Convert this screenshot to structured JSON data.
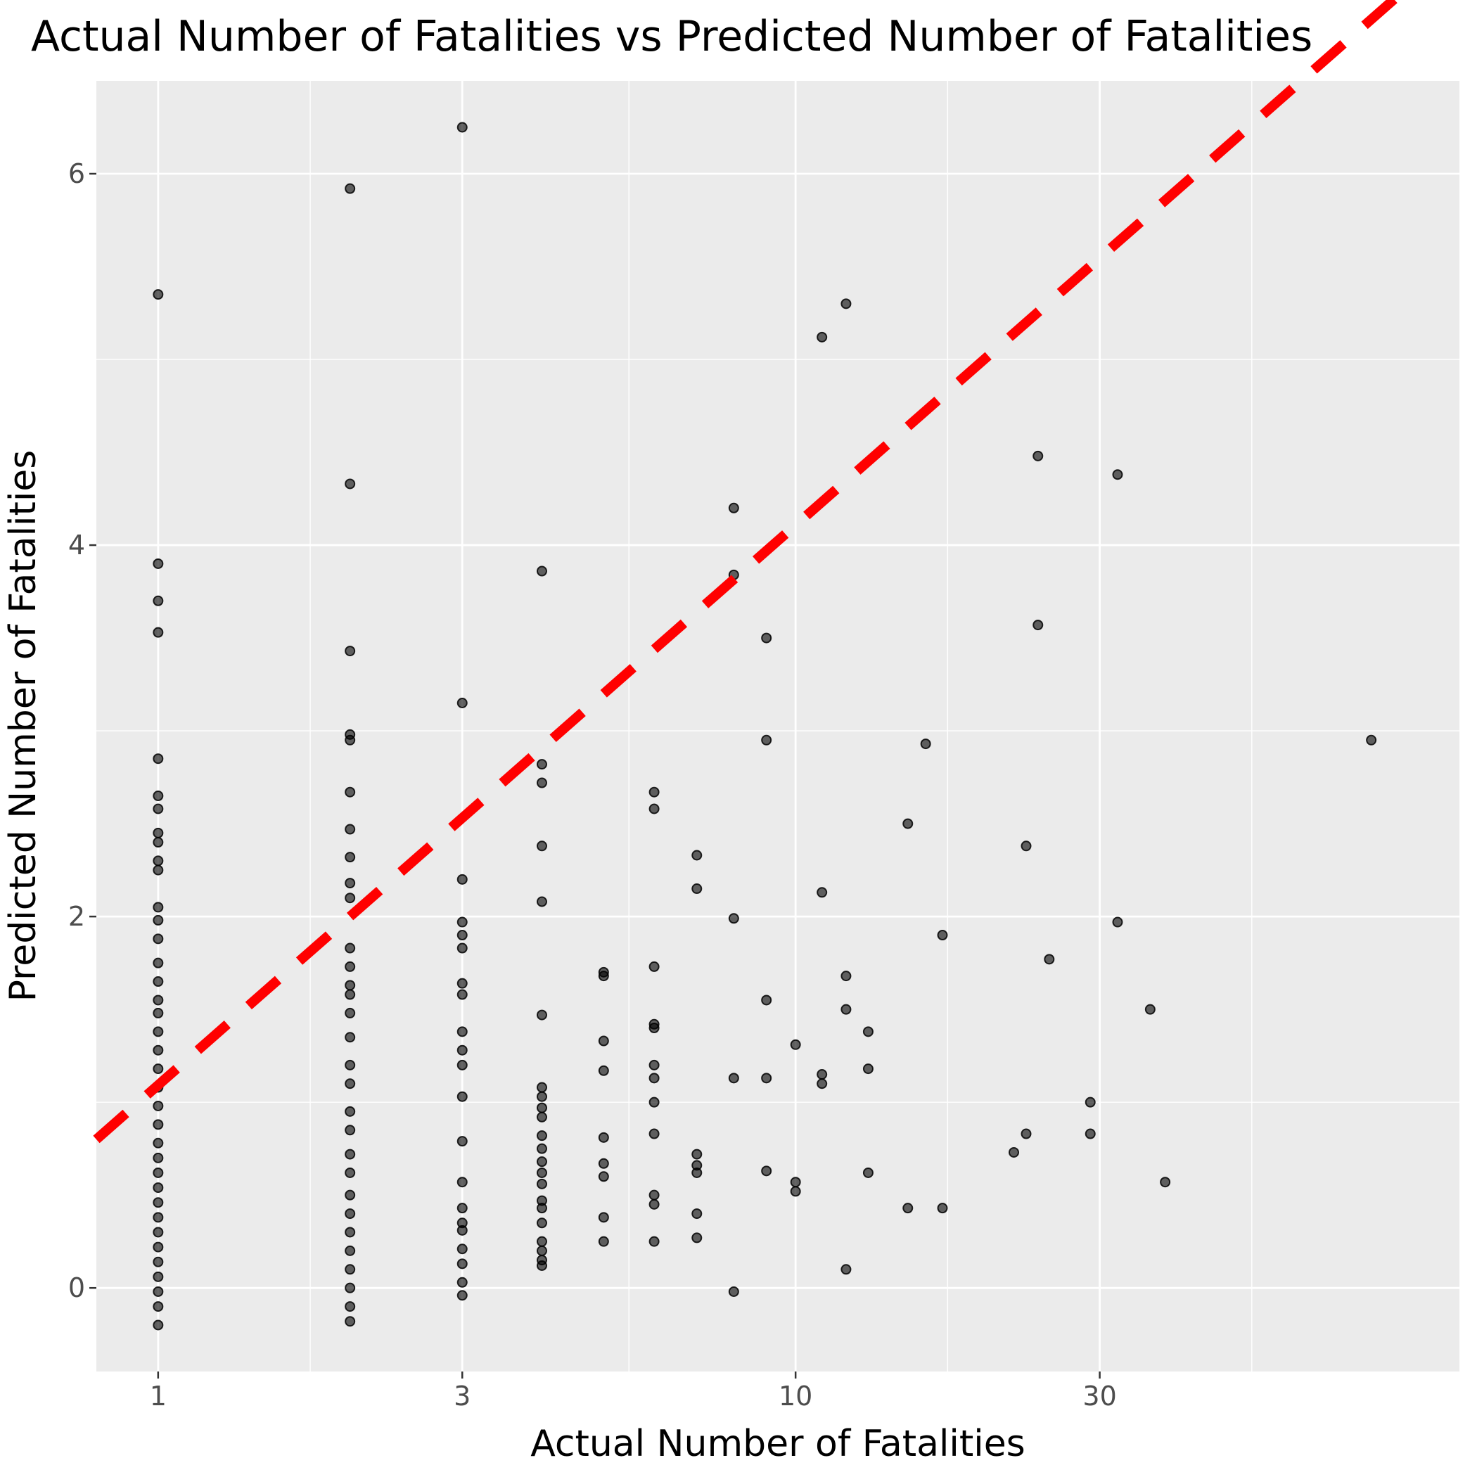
{
  "chart_data": {
    "type": "scatter",
    "title": "Actual Number of Fatalities vs Predicted Number of Fatalities",
    "xlabel": "Actual Number of Fatalities",
    "ylabel": "Predicted Number of Fatalities",
    "x_scale": "log10",
    "xlim": [
      0.8,
      110
    ],
    "ylim": [
      -0.45,
      6.5
    ],
    "x_ticks": [
      1,
      3,
      10,
      30
    ],
    "x_tick_labels": [
      "1",
      "3",
      "10",
      "30"
    ],
    "y_ticks": [
      0,
      2,
      4,
      6
    ],
    "y_tick_labels": [
      "0",
      "2",
      "4",
      "6"
    ],
    "grid": true,
    "background": "#ebebeb",
    "grid_color": "#ffffff",
    "point_color": "#000000",
    "point_alpha": 0.6,
    "reference_line": {
      "slope": 1,
      "intercept": 0,
      "color": "#ff0000",
      "style": "dashed"
    },
    "points": [
      [
        1,
        5.35
      ],
      [
        1,
        3.9
      ],
      [
        1,
        3.7
      ],
      [
        1,
        3.53
      ],
      [
        1,
        2.85
      ],
      [
        1,
        2.65
      ],
      [
        1,
        2.58
      ],
      [
        1,
        2.45
      ],
      [
        1,
        2.4
      ],
      [
        1,
        2.3
      ],
      [
        1,
        2.25
      ],
      [
        1,
        2.05
      ],
      [
        1,
        1.98
      ],
      [
        1,
        1.88
      ],
      [
        1,
        1.75
      ],
      [
        1,
        1.65
      ],
      [
        1,
        1.55
      ],
      [
        1,
        1.48
      ],
      [
        1,
        1.38
      ],
      [
        1,
        1.28
      ],
      [
        1,
        1.18
      ],
      [
        1,
        1.08
      ],
      [
        1,
        0.98
      ],
      [
        1,
        0.88
      ],
      [
        1,
        0.78
      ],
      [
        1,
        0.7
      ],
      [
        1,
        0.62
      ],
      [
        1,
        0.54
      ],
      [
        1,
        0.46
      ],
      [
        1,
        0.38
      ],
      [
        1,
        0.3
      ],
      [
        1,
        0.22
      ],
      [
        1,
        0.14
      ],
      [
        1,
        0.06
      ],
      [
        1,
        -0.02
      ],
      [
        1,
        -0.1
      ],
      [
        1,
        -0.2
      ],
      [
        2,
        5.92
      ],
      [
        2,
        4.33
      ],
      [
        2,
        3.43
      ],
      [
        2,
        2.98
      ],
      [
        2,
        2.95
      ],
      [
        2,
        2.67
      ],
      [
        2,
        2.47
      ],
      [
        2,
        2.32
      ],
      [
        2,
        2.18
      ],
      [
        2,
        2.1
      ],
      [
        2,
        1.83
      ],
      [
        2,
        1.73
      ],
      [
        2,
        1.63
      ],
      [
        2,
        1.58
      ],
      [
        2,
        1.48
      ],
      [
        2,
        1.35
      ],
      [
        2,
        1.2
      ],
      [
        2,
        1.1
      ],
      [
        2,
        0.95
      ],
      [
        2,
        0.85
      ],
      [
        2,
        0.72
      ],
      [
        2,
        0.62
      ],
      [
        2,
        0.5
      ],
      [
        2,
        0.4
      ],
      [
        2,
        0.3
      ],
      [
        2,
        0.2
      ],
      [
        2,
        0.1
      ],
      [
        2,
        0
      ],
      [
        2,
        -0.1
      ],
      [
        2,
        -0.18
      ],
      [
        3,
        6.25
      ],
      [
        3,
        3.15
      ],
      [
        3,
        2.2
      ],
      [
        3,
        1.97
      ],
      [
        3,
        1.9
      ],
      [
        3,
        1.83
      ],
      [
        3,
        1.64
      ],
      [
        3,
        1.58
      ],
      [
        3,
        1.38
      ],
      [
        3,
        1.28
      ],
      [
        3,
        1.2
      ],
      [
        3,
        1.03
      ],
      [
        3,
        0.79
      ],
      [
        3,
        0.57
      ],
      [
        3,
        0.43
      ],
      [
        3,
        0.35
      ],
      [
        3,
        0.31
      ],
      [
        3,
        0.21
      ],
      [
        3,
        0.13
      ],
      [
        3,
        0.03
      ],
      [
        3,
        -0.04
      ],
      [
        4,
        3.86
      ],
      [
        4,
        2.82
      ],
      [
        4,
        2.72
      ],
      [
        4,
        2.38
      ],
      [
        4,
        2.08
      ],
      [
        4,
        1.47
      ],
      [
        4,
        1.08
      ],
      [
        4,
        1.03
      ],
      [
        4,
        0.97
      ],
      [
        4,
        0.92
      ],
      [
        4,
        0.82
      ],
      [
        4,
        0.75
      ],
      [
        4,
        0.68
      ],
      [
        4,
        0.62
      ],
      [
        4,
        0.56
      ],
      [
        4,
        0.47
      ],
      [
        4,
        0.43
      ],
      [
        4,
        0.35
      ],
      [
        4,
        0.25
      ],
      [
        4,
        0.2
      ],
      [
        4,
        0.15
      ],
      [
        4,
        0.12
      ],
      [
        5,
        1.7
      ],
      [
        5,
        1.68
      ],
      [
        5,
        1.33
      ],
      [
        5,
        1.17
      ],
      [
        5,
        0.81
      ],
      [
        5,
        0.67
      ],
      [
        5,
        0.6
      ],
      [
        5,
        0.38
      ],
      [
        5,
        0.25
      ],
      [
        6,
        2.67
      ],
      [
        6,
        2.58
      ],
      [
        6,
        1.73
      ],
      [
        6,
        1.42
      ],
      [
        6,
        1.4
      ],
      [
        6,
        1.2
      ],
      [
        6,
        1.13
      ],
      [
        6,
        1.0
      ],
      [
        6,
        0.83
      ],
      [
        6,
        0.5
      ],
      [
        6,
        0.45
      ],
      [
        6,
        0.25
      ],
      [
        7,
        2.33
      ],
      [
        7,
        2.15
      ],
      [
        7,
        0.72
      ],
      [
        7,
        0.66
      ],
      [
        7,
        0.62
      ],
      [
        7,
        0.4
      ],
      [
        7,
        0.27
      ],
      [
        8,
        4.2
      ],
      [
        8,
        3.84
      ],
      [
        8,
        1.99
      ],
      [
        8,
        1.13
      ],
      [
        8,
        -0.02
      ],
      [
        9,
        3.5
      ],
      [
        9,
        2.95
      ],
      [
        9,
        1.55
      ],
      [
        9,
        1.13
      ],
      [
        9,
        0.63
      ],
      [
        10,
        1.31
      ],
      [
        10,
        0.57
      ],
      [
        10,
        0.52
      ],
      [
        11,
        5.12
      ],
      [
        11,
        2.13
      ],
      [
        11,
        1.15
      ],
      [
        11,
        1.1
      ],
      [
        12,
        5.3
      ],
      [
        12,
        1.68
      ],
      [
        12,
        1.5
      ],
      [
        12,
        0.1
      ],
      [
        13,
        1.38
      ],
      [
        13,
        1.18
      ],
      [
        13,
        0.62
      ],
      [
        15,
        2.5
      ],
      [
        15,
        0.43
      ],
      [
        16,
        2.93
      ],
      [
        17,
        1.9
      ],
      [
        17,
        0.43
      ],
      [
        22,
        0.73
      ],
      [
        23,
        2.38
      ],
      [
        23,
        0.83
      ],
      [
        24,
        4.48
      ],
      [
        24,
        3.57
      ],
      [
        25,
        1.77
      ],
      [
        29,
        1.0
      ],
      [
        29,
        0.83
      ],
      [
        32,
        4.38
      ],
      [
        32,
        1.97
      ],
      [
        36,
        1.5
      ],
      [
        38,
        0.57
      ],
      [
        80,
        2.95
      ]
    ]
  }
}
